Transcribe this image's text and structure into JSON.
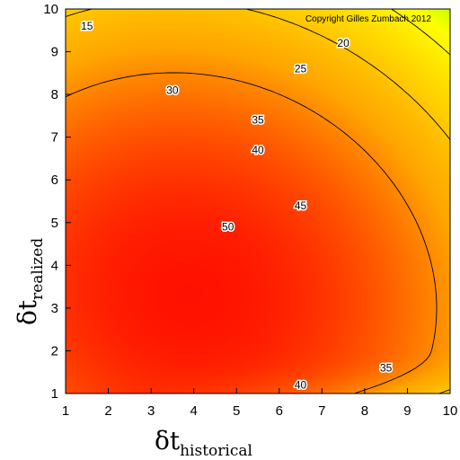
{
  "chart_data": {
    "type": "heatmap",
    "title": "",
    "annotation": "Copyright Gilles Zumbach 2012",
    "x_axis": {
      "label_main": "δt",
      "label_sub": "historical",
      "range": [
        1,
        10
      ],
      "ticks": [
        1,
        2,
        3,
        4,
        5,
        6,
        7,
        8,
        9,
        10
      ]
    },
    "y_axis": {
      "label_main": "δt",
      "label_sub": "realized",
      "range": [
        1,
        10
      ],
      "ticks": [
        1,
        2,
        3,
        4,
        5,
        6,
        7,
        8,
        9,
        10
      ]
    },
    "colormap": [
      "#ff0000",
      "#ffa500",
      "#ffff00",
      "#00ff00",
      "#00ffff",
      "#0000ff"
    ],
    "z_range": [
      10,
      58
    ],
    "grid": false,
    "contour_levels": [
      15,
      20,
      25,
      30,
      35,
      40,
      45,
      50
    ],
    "contour_labels": [
      {
        "text": "15",
        "x": 1.5,
        "y": 9.6
      },
      {
        "text": "20",
        "x": 7.5,
        "y": 9.2
      },
      {
        "text": "25",
        "x": 6.5,
        "y": 8.6
      },
      {
        "text": "30",
        "x": 3.5,
        "y": 8.1
      },
      {
        "text": "35",
        "x": 5.5,
        "y": 7.4
      },
      {
        "text": "40",
        "x": 5.5,
        "y": 6.7
      },
      {
        "text": "45",
        "x": 6.5,
        "y": 5.4
      },
      {
        "text": "50",
        "x": 4.8,
        "y": 4.9
      },
      {
        "text": "40",
        "x": 6.5,
        "y": 1.2
      },
      {
        "text": "35",
        "x": 8.5,
        "y": 1.6
      }
    ]
  }
}
